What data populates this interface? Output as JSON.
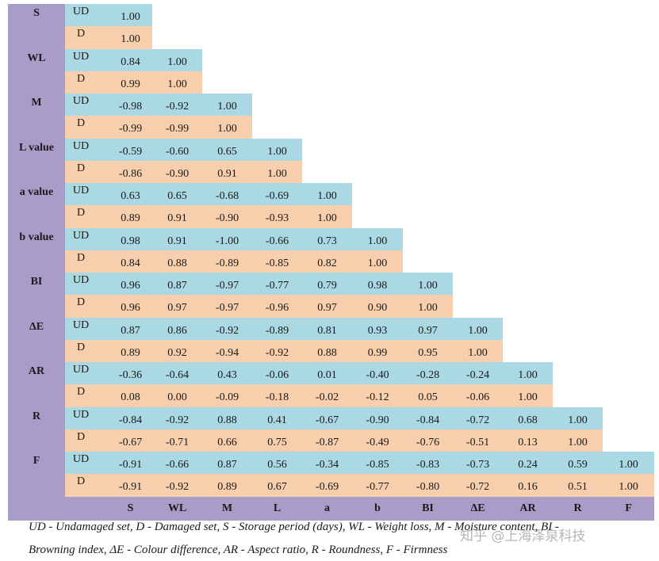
{
  "table": {
    "columns": [
      "S",
      "WL",
      "M",
      "L",
      "a",
      "b",
      "BI",
      "ΔE",
      "AR",
      "R",
      "F"
    ],
    "rows": [
      {
        "label": "S",
        "ud": {
          "set": "UD",
          "values": [
            "1.00"
          ]
        },
        "d": {
          "set": "D",
          "values": [
            "1.00"
          ]
        }
      },
      {
        "label": "WL",
        "ud": {
          "set": "UD",
          "values": [
            "0.84",
            "1.00"
          ]
        },
        "d": {
          "set": "D",
          "values": [
            "0.99",
            "1.00"
          ]
        }
      },
      {
        "label": "M",
        "ud": {
          "set": "UD",
          "values": [
            "-0.98",
            "-0.92",
            "1.00"
          ]
        },
        "d": {
          "set": "D",
          "values": [
            "-0.99",
            "-0.99",
            "1.00"
          ]
        }
      },
      {
        "label": "L value",
        "ud": {
          "set": "UD",
          "values": [
            "-0.59",
            "-0.60",
            "0.65",
            "1.00"
          ]
        },
        "d": {
          "set": "D",
          "values": [
            "-0.86",
            "-0.90",
            "0.91",
            "1.00"
          ]
        }
      },
      {
        "label": "a value",
        "ud": {
          "set": "UD",
          "values": [
            "0.63",
            "0.65",
            "-0.68",
            "-0.69",
            "1.00"
          ]
        },
        "d": {
          "set": "D",
          "values": [
            "0.89",
            "0.91",
            "-0.90",
            "-0.93",
            "1.00"
          ]
        }
      },
      {
        "label": "b value",
        "ud": {
          "set": "UD",
          "values": [
            "0.98",
            "0.91",
            "-1.00",
            "-0.66",
            "0.73",
            "1.00"
          ]
        },
        "d": {
          "set": "D",
          "values": [
            "0.84",
            "0.88",
            "-0.89",
            "-0.85",
            "0.82",
            "1.00"
          ]
        }
      },
      {
        "label": "BI",
        "ud": {
          "set": "UD",
          "values": [
            "0.96",
            "0.87",
            "-0.97",
            "-0.77",
            "0.79",
            "0.98",
            "1.00"
          ]
        },
        "d": {
          "set": "D",
          "values": [
            "0.96",
            "0.97",
            "-0.97",
            "-0.96",
            "0.97",
            "0.90",
            "1.00"
          ]
        }
      },
      {
        "label": "ΔE",
        "ud": {
          "set": "UD",
          "values": [
            "0.87",
            "0.86",
            "-0.92",
            "-0.89",
            "0.81",
            "0.93",
            "0.97",
            "1.00"
          ]
        },
        "d": {
          "set": "D",
          "values": [
            "0.89",
            "0.92",
            "-0.94",
            "-0.92",
            "0.88",
            "0.99",
            "0.95",
            "1.00"
          ]
        }
      },
      {
        "label": "AR",
        "ud": {
          "set": "UD",
          "values": [
            "-0.36",
            "-0.64",
            "0.43",
            "-0.06",
            "0.01",
            "-0.40",
            "-0.28",
            "-0.24",
            "1.00"
          ]
        },
        "d": {
          "set": "D",
          "values": [
            "0.08",
            "0.00",
            "-0.09",
            "-0.18",
            "-0.02",
            "-0.12",
            "0.05",
            "-0.06",
            "1.00"
          ]
        }
      },
      {
        "label": "R",
        "ud": {
          "set": "UD",
          "values": [
            "-0.84",
            "-0.92",
            "0.88",
            "0.41",
            "-0.67",
            "-0.90",
            "-0.84",
            "-0.72",
            "0.68",
            "1.00"
          ]
        },
        "d": {
          "set": "D",
          "values": [
            "-0.67",
            "-0.71",
            "0.66",
            "0.75",
            "-0.87",
            "-0.49",
            "-0.76",
            "-0.51",
            "0.13",
            "1.00"
          ]
        }
      },
      {
        "label": "F",
        "ud": {
          "set": "UD",
          "values": [
            "-0.91",
            "-0.66",
            "0.87",
            "0.56",
            "-0.34",
            "-0.85",
            "-0.83",
            "-0.73",
            "0.24",
            "0.59",
            "1.00"
          ]
        },
        "d": {
          "set": "D",
          "values": [
            "-0.91",
            "-0.92",
            "0.89",
            "0.67",
            "-0.69",
            "-0.77",
            "-0.80",
            "-0.72",
            "0.16",
            "0.51",
            "1.00"
          ]
        }
      }
    ],
    "footnote": [
      "UD - Undamaged set, D - Damaged set, S - Storage period (days), WL - Weight loss, M - Moisture content, BI -",
      "Browning index, ΔE - Colour difference, AR - Aspect ratio, R - Roundness, F - Firmness"
    ],
    "watermark": "知乎 @上海泽泉科技"
  }
}
